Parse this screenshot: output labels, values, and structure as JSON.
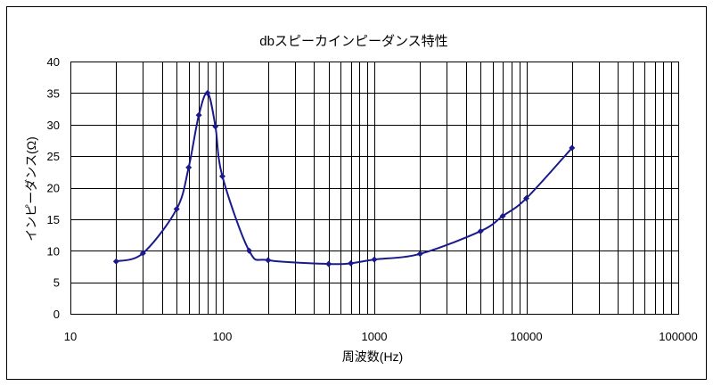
{
  "chart_data": {
    "type": "line",
    "title": "dbスピーカインピーダンス特性",
    "xlabel": "周波数(Hz)",
    "ylabel": "インピーダンス(Ω)",
    "x_scale": "log",
    "xlim": [
      10,
      100000
    ],
    "ylim": [
      0,
      40
    ],
    "x_ticks": [
      "10",
      "100",
      "1000",
      "10000",
      "100000"
    ],
    "y_ticks": [
      "0",
      "5",
      "10",
      "15",
      "20",
      "25",
      "30",
      "35",
      "40"
    ],
    "grid": true,
    "legend": "none",
    "series": [
      {
        "color": "#1a1a8c",
        "points": [
          {
            "x": 20,
            "y": 8.3
          },
          {
            "x": 30,
            "y": 9.6
          },
          {
            "x": 50,
            "y": 16.6
          },
          {
            "x": 60,
            "y": 23.2
          },
          {
            "x": 70,
            "y": 31.5
          },
          {
            "x": 80,
            "y": 35.0
          },
          {
            "x": 90,
            "y": 29.7
          },
          {
            "x": 100,
            "y": 21.8
          },
          {
            "x": 150,
            "y": 10.0
          },
          {
            "x": 200,
            "y": 8.5
          },
          {
            "x": 500,
            "y": 7.9
          },
          {
            "x": 700,
            "y": 8.0
          },
          {
            "x": 1000,
            "y": 8.6
          },
          {
            "x": 2000,
            "y": 9.5
          },
          {
            "x": 5000,
            "y": 13.1
          },
          {
            "x": 7000,
            "y": 15.5
          },
          {
            "x": 10000,
            "y": 18.3
          },
          {
            "x": 20000,
            "y": 26.3
          }
        ]
      }
    ]
  }
}
